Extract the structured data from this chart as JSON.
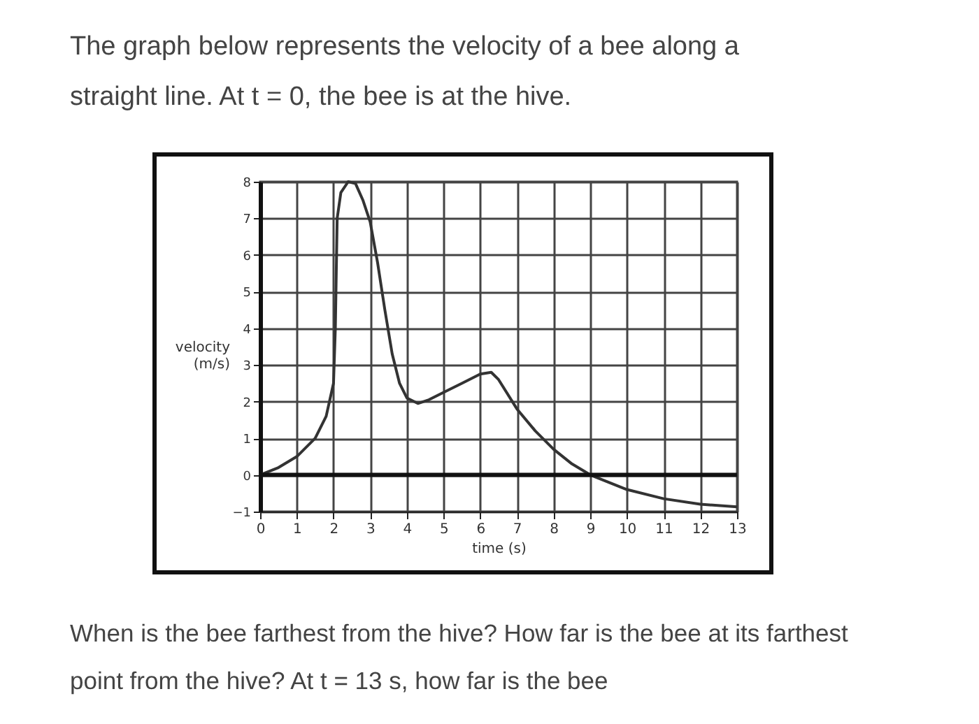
{
  "chart_data": {
    "type": "line",
    "title": "The graph below represents the velocity of a bee along a straight line. At t = 0, the bee is at the hive.",
    "annotations": [
      "When is the bee farthest from the hive? How far is the bee at its farthest point from the hive? At t = 13 s, how far is the bee"
    ],
    "xlabel": "time (s)",
    "ylabel": "velocity (m/s)",
    "x": [
      0,
      0.5,
      1,
      1.5,
      1.8,
      2,
      2.05,
      2.1,
      2.2,
      2.4,
      2.6,
      2.8,
      3,
      3.2,
      3.4,
      3.6,
      3.8,
      4,
      4.3,
      4.6,
      5,
      5.5,
      6,
      6.3,
      6.5,
      7,
      7.5,
      8,
      8.5,
      9,
      9.5,
      10,
      11,
      12,
      13
    ],
    "series": [
      {
        "color": "#333333",
        "values": [
          0,
          0.2,
          0.5,
          1,
          1.6,
          2.5,
          4,
          7,
          7.7,
          8,
          7.95,
          7.5,
          6.9,
          5.8,
          4.5,
          3.3,
          2.5,
          2.1,
          1.95,
          2.05,
          2.25,
          2.5,
          2.75,
          2.8,
          2.6,
          1.8,
          1.2,
          0.7,
          0.3,
          0,
          -0.2,
          -0.4,
          -0.65,
          -0.8,
          -0.87
        ]
      }
    ],
    "xlim": [
      0,
      13
    ],
    "xticks": [
      0,
      1,
      2,
      3,
      4,
      5,
      6,
      7,
      8,
      9,
      10,
      11,
      12,
      13
    ],
    "ylim": [
      -1,
      8
    ],
    "yticks": [
      -1,
      0,
      1,
      2,
      3,
      4,
      5,
      6,
      7,
      8
    ],
    "ref_lines": [
      {
        "axis": "y",
        "value": 0,
        "color": "#111111"
      }
    ],
    "grid": true,
    "marker": "none",
    "line_style": "solid"
  }
}
